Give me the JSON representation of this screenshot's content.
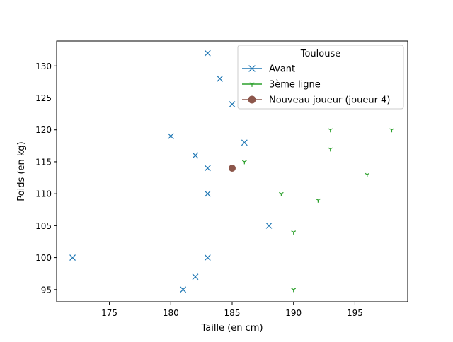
{
  "chart_data": {
    "type": "scatter",
    "xlabel": "Taille (en cm)",
    "ylabel": "Poids (en kg)",
    "xlim": [
      170.7,
      199.3
    ],
    "ylim": [
      93.1,
      133.9
    ],
    "xticks": [
      175,
      180,
      185,
      190,
      195
    ],
    "yticks": [
      95,
      100,
      105,
      110,
      115,
      120,
      125,
      130
    ],
    "grid": false,
    "legend": {
      "title": "Toulouse",
      "placement": "top-right"
    },
    "series": [
      {
        "name": "Avant",
        "marker": "x",
        "color": "#1f77b4",
        "points": [
          [
            183,
            132
          ],
          [
            184,
            128
          ],
          [
            185,
            124
          ],
          [
            180,
            119
          ],
          [
            186,
            118
          ],
          [
            182,
            116
          ],
          [
            183,
            114
          ],
          [
            183,
            110
          ],
          [
            188,
            105
          ],
          [
            172,
            100
          ],
          [
            183,
            100
          ],
          [
            182,
            97
          ],
          [
            181,
            95
          ]
        ]
      },
      {
        "name": "3ème ligne",
        "marker": "tri_down",
        "color": "#2ca02c",
        "points": [
          [
            193,
            120
          ],
          [
            198,
            120
          ],
          [
            193,
            117
          ],
          [
            186,
            115
          ],
          [
            196,
            113
          ],
          [
            189,
            110
          ],
          [
            192,
            109
          ],
          [
            190,
            104
          ],
          [
            190,
            95
          ]
        ]
      },
      {
        "name": "Nouveau joueur (joueur 4)",
        "marker": "circle",
        "color": "#8c564b",
        "points": [
          [
            185,
            114
          ]
        ]
      }
    ]
  }
}
